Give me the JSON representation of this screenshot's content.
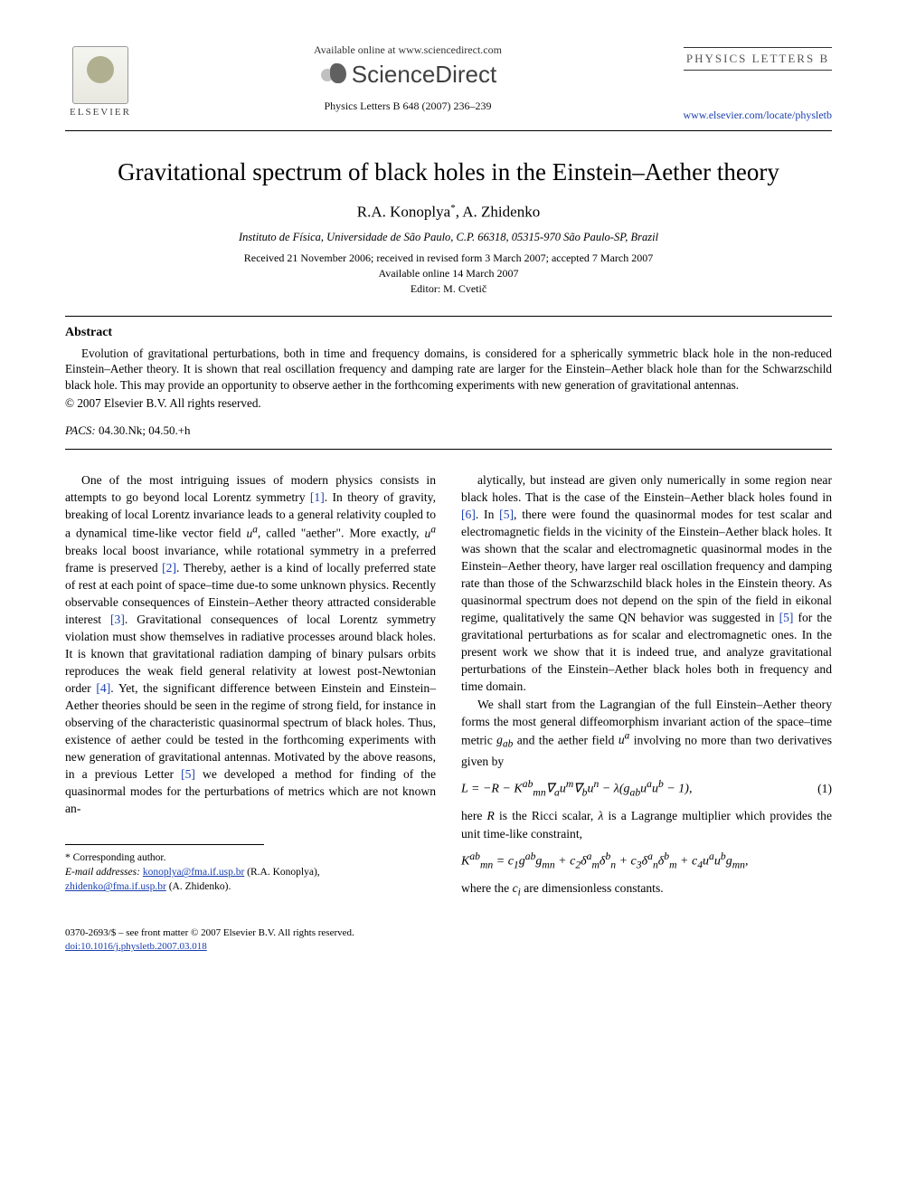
{
  "header": {
    "publisher_name": "ELSEVIER",
    "available_line": "Available online at www.sciencedirect.com",
    "sciencedirect": "ScienceDirect",
    "journal_ref": "Physics Letters B 648 (2007) 236–239",
    "journal_title_right": "PHYSICS LETTERS B",
    "locate_url": "www.elsevier.com/locate/physletb"
  },
  "article": {
    "title": "Gravitational spectrum of black holes in the Einstein–Aether theory",
    "authors_html": "R.A. Konoplya *, A. Zhidenko",
    "author1": "R.A. Konoplya",
    "author_sep": ", ",
    "author2": "A. Zhidenko",
    "corr_mark": "*",
    "affiliation": "Instituto de Física, Universidade de São Paulo, C.P. 66318, 05315-970 São Paulo-SP, Brazil",
    "dates_received": "Received 21 November 2006; received in revised form 3 March 2007; accepted 7 March 2007",
    "dates_online": "Available online 14 March 2007",
    "editor": "Editor: M. Cvetič"
  },
  "abstract": {
    "heading": "Abstract",
    "text": "Evolution of gravitational perturbations, both in time and frequency domains, is considered for a spherically symmetric black hole in the non-reduced Einstein–Aether theory. It is shown that real oscillation frequency and damping rate are larger for the Einstein–Aether black hole than for the Schwarzschild black hole. This may provide an opportunity to observe aether in the forthcoming experiments with new generation of gravitational antennas.",
    "copyright": "© 2007 Elsevier B.V. All rights reserved.",
    "pacs_label": "PACS:",
    "pacs_codes": " 04.30.Nk; 04.50.+h"
  },
  "body": {
    "left_para": "One of the most intriguing issues of modern physics consists in attempts to go beyond local Lorentz symmetry [1]. In theory of gravity, breaking of local Lorentz invariance leads to a general relativity coupled to a dynamical time-like vector field uᵃ, called \"aether\". More exactly, uᵃ breaks local boost invariance, while rotational symmetry in a preferred frame is preserved [2]. Thereby, aether is a kind of locally preferred state of rest at each point of space–time due-to some unknown physics. Recently observable consequences of Einstein–Aether theory attracted considerable interest [3]. Gravitational consequences of local Lorentz symmetry violation must show themselves in radiative processes around black holes. It is known that gravitational radiation damping of binary pulsars orbits reproduces the weak field general relativity at lowest post-Newtonian order [4]. Yet, the significant difference between Einstein and Einstein–Aether theories should be seen in the regime of strong field, for instance in observing of the characteristic quasinormal spectrum of black holes. Thus, existence of aether could be tested in the forthcoming experiments with new generation of gravitational antennas. Motivated by the above reasons, in a previous Letter [5] we developed a method for finding of the quasinormal modes for the perturbations of metrics which are not known an-",
    "right_para1": "alytically, but instead are given only numerically in some region near black holes. That is the case of the Einstein–Aether black holes found in [6]. In [5], there were found the quasinormal modes for test scalar and electromagnetic fields in the vicinity of the Einstein–Aether black holes. It was shown that the scalar and electromagnetic quasinormal modes in the Einstein–Aether theory, have larger real oscillation frequency and damping rate than those of the Schwarzschild black holes in the Einstein theory. As quasinormal spectrum does not depend on the spin of the field in eikonal regime, qualitatively the same QN behavior was suggested in [5] for the gravitational perturbations as for scalar and electromagnetic ones. In the present work we show that it is indeed true, and analyze gravitational perturbations of the Einstein–Aether black holes both in frequency and time domain.",
    "right_para2": "We shall start from the Lagrangian of the full Einstein–Aether theory forms the most general diffeomorphism invariant action of the space–time metric g_{ab} and the aether field uᵃ involving no more than two derivatives given by",
    "eq1": "L = −R − Kᵃᵇ_{mn}∇ₐuᵐ∇_buⁿ − λ(g_{ab}uᵃuᵇ − 1),",
    "eq1_num": "(1)",
    "after_eq1": "here R is the Ricci scalar, λ is a Lagrange multiplier which provides the unit time-like constraint,",
    "eq2": "Kᵃᵇ_{mn} = c₁gᵃᵇg_{mn} + c₂δᵃ_mδᵇ_n + c₃δᵃ_nδᵇ_m + c₄uᵃuᵇg_{mn},",
    "after_eq2": "where the cᵢ are dimensionless constants.",
    "refs": {
      "1": "[1]",
      "2": "[2]",
      "3": "[3]",
      "4": "[4]",
      "5": "[5]",
      "6": "[6]"
    }
  },
  "footnotes": {
    "corr": "* Corresponding author.",
    "email_label": "E-mail addresses: ",
    "email1": "konoplya@fma.if.usp.br",
    "email1_who": " (R.A. Konoplya),",
    "email2": "zhidenko@fma.if.usp.br",
    "email2_who": " (A. Zhidenko)."
  },
  "bottom": {
    "front_matter": "0370-2693/$ – see front matter © 2007 Elsevier B.V. All rights reserved.",
    "doi": "doi:10.1016/j.physletb.2007.03.018"
  },
  "colors": {
    "link": "#1a3fb0",
    "text": "#000000",
    "background": "#ffffff"
  },
  "typography": {
    "body_fontsize_pt": 10,
    "title_fontsize_pt": 20,
    "authors_fontsize_pt": 13
  }
}
